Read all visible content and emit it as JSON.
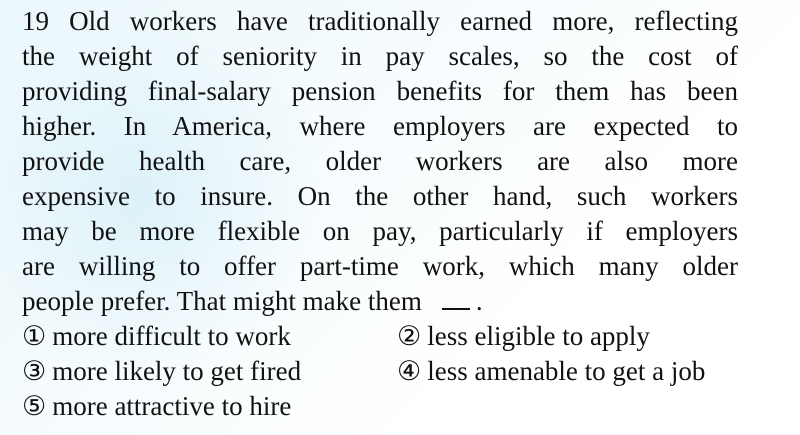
{
  "question": {
    "lines": [
      "19 Old workers have traditionally earned more, reflecting",
      "the weight of seniority in pay scales, so the cost of",
      "providing final-salary pension benefits for them has been",
      "higher. In America, where employers are expected to",
      "provide health care, older workers are also more",
      "expensive to insure. On the other hand, such workers",
      "may be more flexible on pay, particularly if employers",
      "are willing to offer part-time work, which many older",
      "people prefer. That might make them"
    ],
    "end_punct": "."
  },
  "choices": [
    {
      "num": "①",
      "text": "more difficult to work"
    },
    {
      "num": "②",
      "text": "less eligible to apply"
    },
    {
      "num": "③",
      "text": "more likely to get fired"
    },
    {
      "num": "④",
      "text": "less amenable to get a job"
    },
    {
      "num": "⑤",
      "text": "more attractive to hire"
    }
  ]
}
